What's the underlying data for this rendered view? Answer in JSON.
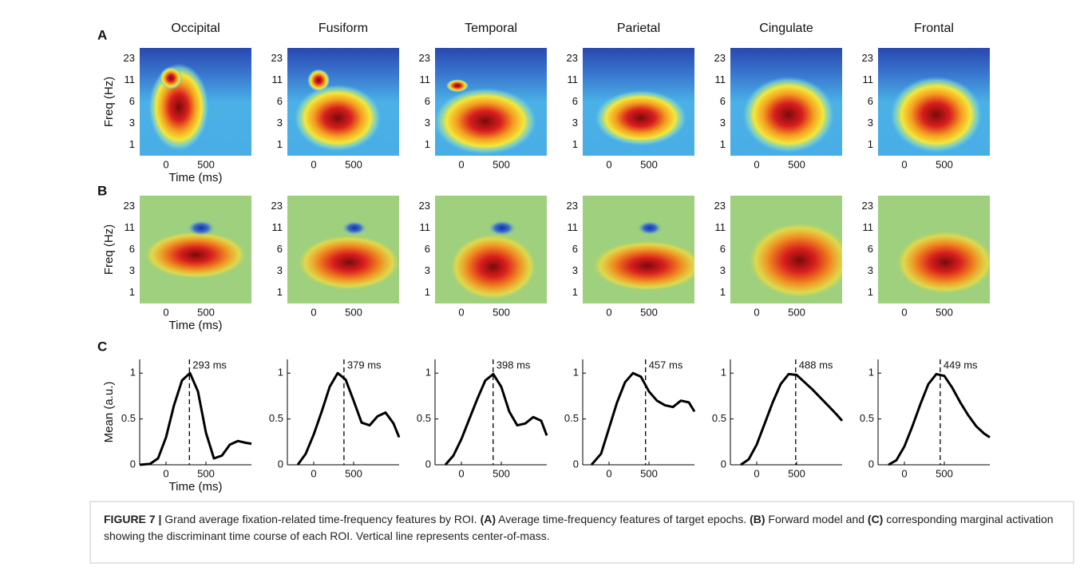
{
  "panel_letters": [
    "A",
    "B",
    "C"
  ],
  "rois": [
    "Occipital",
    "Fusiform",
    "Temporal",
    "Parietal",
    "Cingulate",
    "Frontal"
  ],
  "heatmap": {
    "ylabel": "Freq (Hz)",
    "xlabel": "Time (ms)",
    "yticks": [
      23,
      11,
      6,
      3,
      1
    ],
    "xticks": [
      0,
      500
    ]
  },
  "caption": [
    {
      "text": "FIGURE 7 | ",
      "bold": true
    },
    {
      "text": "Grand average fixation-related time-frequency features by ROI. ",
      "bold": false
    },
    {
      "text": "(A)",
      "bold": true
    },
    {
      "text": " Average time-frequency features of target epochs. ",
      "bold": false
    },
    {
      "text": "(B)",
      "bold": true
    },
    {
      "text": " Forward model and ",
      "bold": false
    },
    {
      "text": "(C)",
      "bold": true
    },
    {
      "text": " corresponding marginal activation showing the discriminant time course of each ROI. Vertical line represents center-of-mass.",
      "bold": false
    }
  ],
  "chart_data": [
    {
      "type": "line",
      "ylabel": "Mean (a.u.)",
      "xlabel": "Time (ms)",
      "color": "#000000",
      "x": [
        -330,
        -200,
        -100,
        0,
        100,
        200,
        300,
        400,
        500,
        600,
        700,
        800,
        900,
        1000,
        1070
      ],
      "values": [
        0,
        0.01,
        0.07,
        0.3,
        0.65,
        0.92,
        1.0,
        0.8,
        0.35,
        0.07,
        0.1,
        0.22,
        0.26,
        0.24,
        0.23
      ],
      "xlim": [
        -330,
        1070
      ],
      "ylim": [
        0,
        1.15
      ],
      "xticks": [
        0,
        500
      ],
      "yticks": [
        0,
        0.5,
        1
      ],
      "center_of_mass": {
        "value": 293,
        "label": "293 ms"
      }
    },
    {
      "type": "line",
      "color": "#000000",
      "x": [
        -200,
        -100,
        0,
        100,
        200,
        300,
        400,
        500,
        600,
        700,
        800,
        900,
        1000,
        1070
      ],
      "values": [
        0,
        0.12,
        0.33,
        0.58,
        0.85,
        1.0,
        0.93,
        0.7,
        0.46,
        0.43,
        0.53,
        0.57,
        0.45,
        0.3
      ],
      "xlim": [
        -330,
        1070
      ],
      "ylim": [
        0,
        1.15
      ],
      "xticks": [
        0,
        500
      ],
      "yticks": [
        0,
        0.5,
        1
      ],
      "center_of_mass": {
        "value": 379,
        "label": "379 ms"
      }
    },
    {
      "type": "line",
      "color": "#000000",
      "x": [
        -200,
        -100,
        0,
        100,
        200,
        300,
        400,
        500,
        600,
        700,
        800,
        900,
        1000,
        1070
      ],
      "values": [
        0,
        0.1,
        0.28,
        0.5,
        0.72,
        0.92,
        0.99,
        0.85,
        0.58,
        0.43,
        0.45,
        0.52,
        0.48,
        0.32
      ],
      "xlim": [
        -330,
        1070
      ],
      "ylim": [
        0,
        1.15
      ],
      "xticks": [
        0,
        500
      ],
      "yticks": [
        0,
        0.5,
        1
      ],
      "center_of_mass": {
        "value": 398,
        "label": "398 ms"
      }
    },
    {
      "type": "line",
      "color": "#000000",
      "x": [
        -220,
        -100,
        0,
        100,
        200,
        300,
        400,
        500,
        600,
        700,
        800,
        900,
        1000,
        1070
      ],
      "values": [
        0,
        0.12,
        0.4,
        0.68,
        0.9,
        1.0,
        0.96,
        0.8,
        0.7,
        0.65,
        0.63,
        0.7,
        0.68,
        0.58
      ],
      "xlim": [
        -330,
        1070
      ],
      "ylim": [
        0,
        1.15
      ],
      "xticks": [
        0,
        500
      ],
      "yticks": [
        0,
        0.5,
        1
      ],
      "center_of_mass": {
        "value": 457,
        "label": "457 ms"
      }
    },
    {
      "type": "line",
      "color": "#000000",
      "x": [
        -200,
        -100,
        0,
        100,
        200,
        300,
        400,
        500,
        600,
        700,
        800,
        900,
        1000,
        1070
      ],
      "values": [
        0,
        0.06,
        0.22,
        0.45,
        0.68,
        0.88,
        0.99,
        0.98,
        0.9,
        0.82,
        0.73,
        0.64,
        0.55,
        0.48
      ],
      "xlim": [
        -330,
        1070
      ],
      "ylim": [
        0,
        1.15
      ],
      "xticks": [
        0,
        500
      ],
      "yticks": [
        0,
        0.5,
        1
      ],
      "center_of_mass": {
        "value": 488,
        "label": "488 ms"
      }
    },
    {
      "type": "line",
      "color": "#000000",
      "x": [
        -200,
        -100,
        0,
        100,
        200,
        300,
        400,
        500,
        600,
        700,
        800,
        900,
        1000,
        1070
      ],
      "values": [
        0,
        0.05,
        0.2,
        0.42,
        0.66,
        0.88,
        0.99,
        0.97,
        0.84,
        0.68,
        0.54,
        0.42,
        0.34,
        0.3
      ],
      "xlim": [
        -330,
        1070
      ],
      "ylim": [
        0,
        1.15
      ],
      "xticks": [
        0,
        500
      ],
      "yticks": [
        0,
        0.5,
        1
      ],
      "center_of_mass": {
        "value": 449,
        "label": "449 ms"
      }
    }
  ]
}
